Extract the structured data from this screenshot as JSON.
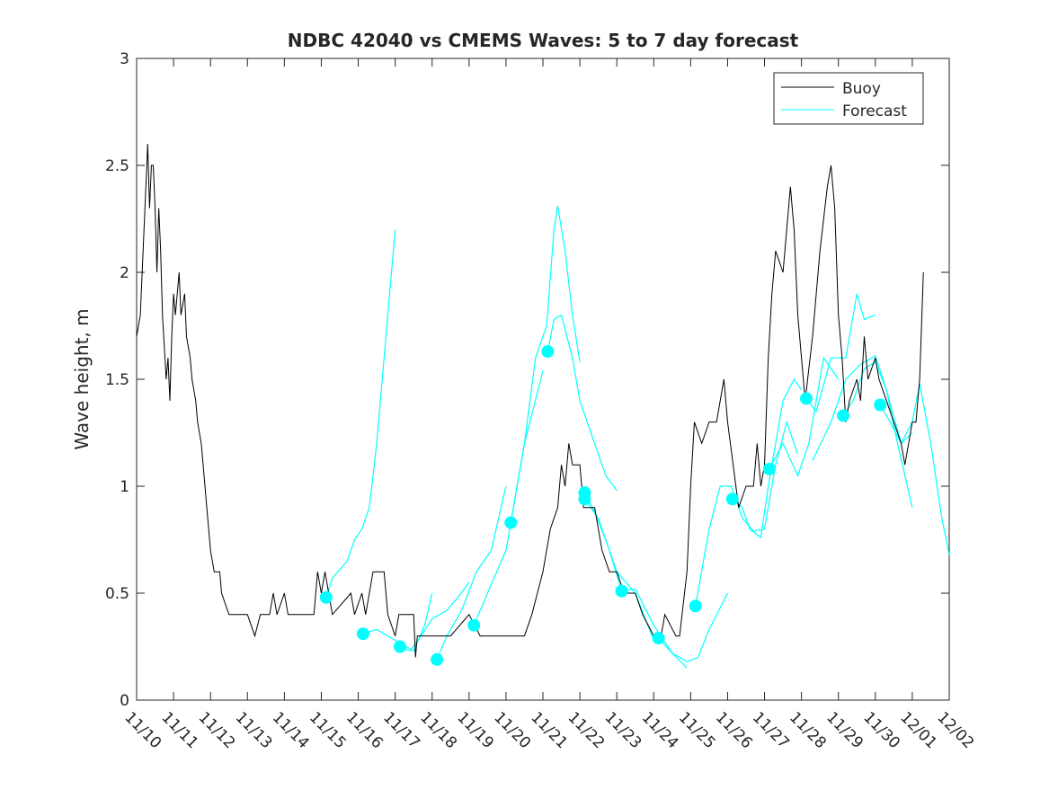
{
  "chart_data": {
    "type": "line",
    "title": "NDBC 42040 vs CMEMS Waves: 5 to 7 day forecast",
    "xlabel": "",
    "ylabel": "Wave height, m",
    "xlim": [
      0,
      22
    ],
    "ylim": [
      0,
      3
    ],
    "yticks": [
      0,
      0.5,
      1,
      1.5,
      2,
      2.5,
      3
    ],
    "ytick_labels": [
      "0",
      "0.5",
      "1",
      "1.5",
      "2",
      "2.5",
      "3"
    ],
    "xtick_labels": [
      "11/10",
      "11/11",
      "11/12",
      "11/13",
      "11/14",
      "11/15",
      "11/16",
      "11/17",
      "11/18",
      "11/19",
      "11/20",
      "11/21",
      "11/22",
      "11/23",
      "11/24",
      "11/25",
      "11/26",
      "11/27",
      "11/28",
      "11/29",
      "11/30",
      "12/01",
      "12/02"
    ],
    "x_units": "days since 11/10",
    "legend": {
      "placement": "top-right",
      "entries": [
        "Buoy",
        "Forecast"
      ]
    },
    "colors": {
      "buoy": "#000000",
      "forecast": "#00ffff"
    },
    "buoy": [
      [
        0,
        1.7
      ],
      [
        0.1,
        1.8
      ],
      [
        0.2,
        2.2
      ],
      [
        0.25,
        2.4
      ],
      [
        0.3,
        2.6
      ],
      [
        0.35,
        2.3
      ],
      [
        0.4,
        2.5
      ],
      [
        0.45,
        2.5
      ],
      [
        0.5,
        2.3
      ],
      [
        0.55,
        2.0
      ],
      [
        0.6,
        2.3
      ],
      [
        0.65,
        2.1
      ],
      [
        0.7,
        1.8
      ],
      [
        0.8,
        1.5
      ],
      [
        0.85,
        1.6
      ],
      [
        0.9,
        1.4
      ],
      [
        0.95,
        1.7
      ],
      [
        1.0,
        1.9
      ],
      [
        1.05,
        1.8
      ],
      [
        1.15,
        2.0
      ],
      [
        1.2,
        1.8
      ],
      [
        1.3,
        1.9
      ],
      [
        1.35,
        1.7
      ],
      [
        1.45,
        1.6
      ],
      [
        1.5,
        1.5
      ],
      [
        1.6,
        1.4
      ],
      [
        1.65,
        1.3
      ],
      [
        1.75,
        1.2
      ],
      [
        1.85,
        1.0
      ],
      [
        1.9,
        0.9
      ],
      [
        2.0,
        0.7
      ],
      [
        2.1,
        0.6
      ],
      [
        2.25,
        0.6
      ],
      [
        2.3,
        0.5
      ],
      [
        2.5,
        0.4
      ],
      [
        3.0,
        0.4
      ],
      [
        3.2,
        0.3
      ],
      [
        3.35,
        0.4
      ],
      [
        3.6,
        0.4
      ],
      [
        3.7,
        0.5
      ],
      [
        3.8,
        0.4
      ],
      [
        4.0,
        0.5
      ],
      [
        4.1,
        0.4
      ],
      [
        4.8,
        0.4
      ],
      [
        4.9,
        0.6
      ],
      [
        5.0,
        0.5
      ],
      [
        5.1,
        0.6
      ],
      [
        5.2,
        0.5
      ],
      [
        5.3,
        0.4
      ],
      [
        5.8,
        0.5
      ],
      [
        5.9,
        0.4
      ],
      [
        6.1,
        0.5
      ],
      [
        6.2,
        0.4
      ],
      [
        6.4,
        0.6
      ],
      [
        6.7,
        0.6
      ],
      [
        6.8,
        0.4
      ],
      [
        7.0,
        0.3
      ],
      [
        7.1,
        0.4
      ],
      [
        7.5,
        0.4
      ],
      [
        7.55,
        0.2
      ],
      [
        7.6,
        0.3
      ],
      [
        8.5,
        0.3
      ],
      [
        9.0,
        0.4
      ],
      [
        9.3,
        0.3
      ],
      [
        10.0,
        0.3
      ],
      [
        10.5,
        0.3
      ],
      [
        10.7,
        0.4
      ],
      [
        11.0,
        0.6
      ],
      [
        11.2,
        0.8
      ],
      [
        11.4,
        0.9
      ],
      [
        11.5,
        1.1
      ],
      [
        11.6,
        1.0
      ],
      [
        11.7,
        1.2
      ],
      [
        11.8,
        1.1
      ],
      [
        12.0,
        1.1
      ],
      [
        12.1,
        0.9
      ],
      [
        12.4,
        0.9
      ],
      [
        12.5,
        0.8
      ],
      [
        12.6,
        0.7
      ],
      [
        12.8,
        0.6
      ],
      [
        13.0,
        0.6
      ],
      [
        13.2,
        0.5
      ],
      [
        13.5,
        0.5
      ],
      [
        13.7,
        0.4
      ],
      [
        14.0,
        0.3
      ],
      [
        14.2,
        0.3
      ],
      [
        14.3,
        0.4
      ],
      [
        14.6,
        0.3
      ],
      [
        14.7,
        0.3
      ],
      [
        14.9,
        0.6
      ],
      [
        15.0,
        1.0
      ],
      [
        15.1,
        1.3
      ],
      [
        15.3,
        1.2
      ],
      [
        15.5,
        1.3
      ],
      [
        15.7,
        1.3
      ],
      [
        15.9,
        1.5
      ],
      [
        16.0,
        1.3
      ],
      [
        16.3,
        0.9
      ],
      [
        16.5,
        1.0
      ],
      [
        16.7,
        1.0
      ],
      [
        16.8,
        1.2
      ],
      [
        16.9,
        1.0
      ],
      [
        17.0,
        1.1
      ],
      [
        17.1,
        1.6
      ],
      [
        17.2,
        1.9
      ],
      [
        17.3,
        2.1
      ],
      [
        17.5,
        2.0
      ],
      [
        17.6,
        2.2
      ],
      [
        17.7,
        2.4
      ],
      [
        17.8,
        2.2
      ],
      [
        17.9,
        1.8
      ],
      [
        18.0,
        1.6
      ],
      [
        18.1,
        1.4
      ],
      [
        18.3,
        1.7
      ],
      [
        18.5,
        2.1
      ],
      [
        18.7,
        2.4
      ],
      [
        18.8,
        2.5
      ],
      [
        18.9,
        2.3
      ],
      [
        19.0,
        1.8
      ],
      [
        19.1,
        1.6
      ],
      [
        19.2,
        1.3
      ],
      [
        19.3,
        1.4
      ],
      [
        19.5,
        1.5
      ],
      [
        19.6,
        1.4
      ],
      [
        19.7,
        1.7
      ],
      [
        19.8,
        1.5
      ],
      [
        20.0,
        1.6
      ],
      [
        20.1,
        1.5
      ],
      [
        20.3,
        1.4
      ],
      [
        20.5,
        1.3
      ],
      [
        20.7,
        1.2
      ],
      [
        20.8,
        1.1
      ],
      [
        21.0,
        1.3
      ],
      [
        21.1,
        1.3
      ],
      [
        21.2,
        1.5
      ],
      [
        21.3,
        2.0
      ]
    ],
    "forecast_segments": [
      [
        [
          5.13,
          0.48
        ],
        [
          5.3,
          0.57
        ],
        [
          5.5,
          0.61
        ],
        [
          5.7,
          0.65
        ],
        [
          5.9,
          0.75
        ],
        [
          6.1,
          0.8
        ],
        [
          6.3,
          0.9
        ],
        [
          6.5,
          1.2
        ],
        [
          6.7,
          1.6
        ],
        [
          7.0,
          2.2
        ]
      ],
      [
        [
          6.13,
          0.31
        ],
        [
          6.5,
          0.33
        ],
        [
          7.0,
          0.28
        ],
        [
          7.5,
          0.23
        ],
        [
          7.8,
          0.35
        ],
        [
          8.0,
          0.5
        ]
      ],
      [
        [
          7.13,
          0.25
        ],
        [
          7.4,
          0.23
        ],
        [
          7.7,
          0.3
        ],
        [
          8.0,
          0.38
        ],
        [
          8.4,
          0.42
        ],
        [
          8.7,
          0.48
        ],
        [
          9.0,
          0.55
        ]
      ],
      [
        [
          8.13,
          0.19
        ],
        [
          8.4,
          0.3
        ],
        [
          8.8,
          0.42
        ],
        [
          9.2,
          0.6
        ],
        [
          9.6,
          0.7
        ],
        [
          10.0,
          1.0
        ]
      ],
      [
        [
          9.13,
          0.35
        ],
        [
          9.5,
          0.5
        ],
        [
          10.0,
          0.7
        ],
        [
          10.5,
          1.2
        ],
        [
          11.0,
          1.54
        ]
      ],
      [
        [
          10.13,
          0.83
        ],
        [
          10.5,
          1.2
        ],
        [
          10.8,
          1.6
        ],
        [
          11.1,
          1.75
        ],
        [
          11.3,
          2.2
        ],
        [
          11.4,
          2.31
        ],
        [
          11.6,
          2.1
        ],
        [
          11.8,
          1.8
        ],
        [
          12.0,
          1.58
        ]
      ],
      [
        [
          11.13,
          1.63
        ],
        [
          11.3,
          1.78
        ],
        [
          11.5,
          1.8
        ],
        [
          11.8,
          1.6
        ],
        [
          12.0,
          1.4
        ],
        [
          12.4,
          1.2
        ],
        [
          12.7,
          1.05
        ],
        [
          13.0,
          0.98
        ]
      ],
      [
        [
          12.13,
          0.97
        ],
        [
          12.4,
          0.88
        ],
        [
          12.7,
          0.75
        ],
        [
          13.0,
          0.6
        ],
        [
          13.5,
          0.5
        ],
        [
          14.0,
          0.28
        ]
      ],
      [
        [
          12.13,
          0.94
        ],
        [
          12.5,
          0.85
        ],
        [
          12.8,
          0.7
        ],
        [
          13.13,
          0.51
        ],
        [
          13.5,
          0.52
        ],
        [
          14.0,
          0.35
        ],
        [
          14.5,
          0.22
        ],
        [
          14.9,
          0.15
        ]
      ],
      [
        [
          14.13,
          0.29
        ],
        [
          14.5,
          0.22
        ],
        [
          14.9,
          0.18
        ],
        [
          15.2,
          0.2
        ],
        [
          15.5,
          0.33
        ],
        [
          16.0,
          0.5
        ]
      ],
      [
        [
          15.13,
          0.44
        ],
        [
          15.5,
          0.8
        ],
        [
          15.8,
          1.0
        ],
        [
          16.1,
          1.0
        ],
        [
          16.4,
          0.85
        ],
        [
          16.7,
          0.79
        ],
        [
          17.0,
          0.8
        ],
        [
          17.3,
          1.1
        ],
        [
          17.6,
          1.3
        ],
        [
          17.9,
          1.15
        ]
      ],
      [
        [
          16.13,
          0.94
        ],
        [
          16.4,
          0.9
        ],
        [
          16.6,
          0.8
        ],
        [
          16.9,
          0.76
        ],
        [
          17.1,
          1.0
        ],
        [
          17.5,
          1.4
        ],
        [
          17.8,
          1.5
        ],
        [
          18.0,
          1.45
        ]
      ],
      [
        [
          17.13,
          1.08
        ],
        [
          17.5,
          1.2
        ],
        [
          17.9,
          1.05
        ],
        [
          18.2,
          1.2
        ],
        [
          18.6,
          1.6
        ],
        [
          19.0,
          1.5
        ]
      ],
      [
        [
          18.13,
          1.41
        ],
        [
          18.4,
          1.35
        ],
        [
          18.8,
          1.6
        ],
        [
          19.2,
          1.6
        ],
        [
          19.5,
          1.9
        ],
        [
          19.7,
          1.78
        ],
        [
          20.0,
          1.8
        ]
      ],
      [
        [
          18.3,
          1.12
        ],
        [
          18.8,
          1.3
        ],
        [
          19.2,
          1.5
        ],
        [
          19.6,
          1.57
        ],
        [
          20.0,
          1.61
        ],
        [
          20.3,
          1.45
        ],
        [
          20.6,
          1.2
        ],
        [
          21.0,
          0.9
        ]
      ],
      [
        [
          19.13,
          1.33
        ],
        [
          19.4,
          1.4
        ],
        [
          19.7,
          1.55
        ],
        [
          20.0,
          1.58
        ],
        [
          20.3,
          1.45
        ],
        [
          20.7,
          1.2
        ],
        [
          21.0,
          1.25
        ]
      ],
      [
        [
          20.13,
          1.38
        ],
        [
          20.4,
          1.3
        ],
        [
          20.7,
          1.2
        ],
        [
          21.0,
          1.3
        ],
        [
          21.2,
          1.48
        ],
        [
          21.5,
          1.2
        ],
        [
          21.8,
          0.85
        ],
        [
          22.0,
          0.68
        ]
      ]
    ],
    "forecast_markers": [
      [
        5.13,
        0.48
      ],
      [
        6.13,
        0.31
      ],
      [
        7.13,
        0.25
      ],
      [
        8.13,
        0.19
      ],
      [
        9.13,
        0.35
      ],
      [
        10.13,
        0.83
      ],
      [
        11.13,
        1.63
      ],
      [
        12.13,
        0.97
      ],
      [
        12.13,
        0.94
      ],
      [
        13.13,
        0.51
      ],
      [
        14.13,
        0.29
      ],
      [
        15.13,
        0.44
      ],
      [
        16.13,
        0.94
      ],
      [
        17.13,
        1.08
      ],
      [
        18.13,
        1.41
      ],
      [
        19.13,
        1.33
      ],
      [
        20.13,
        1.38
      ]
    ]
  }
}
